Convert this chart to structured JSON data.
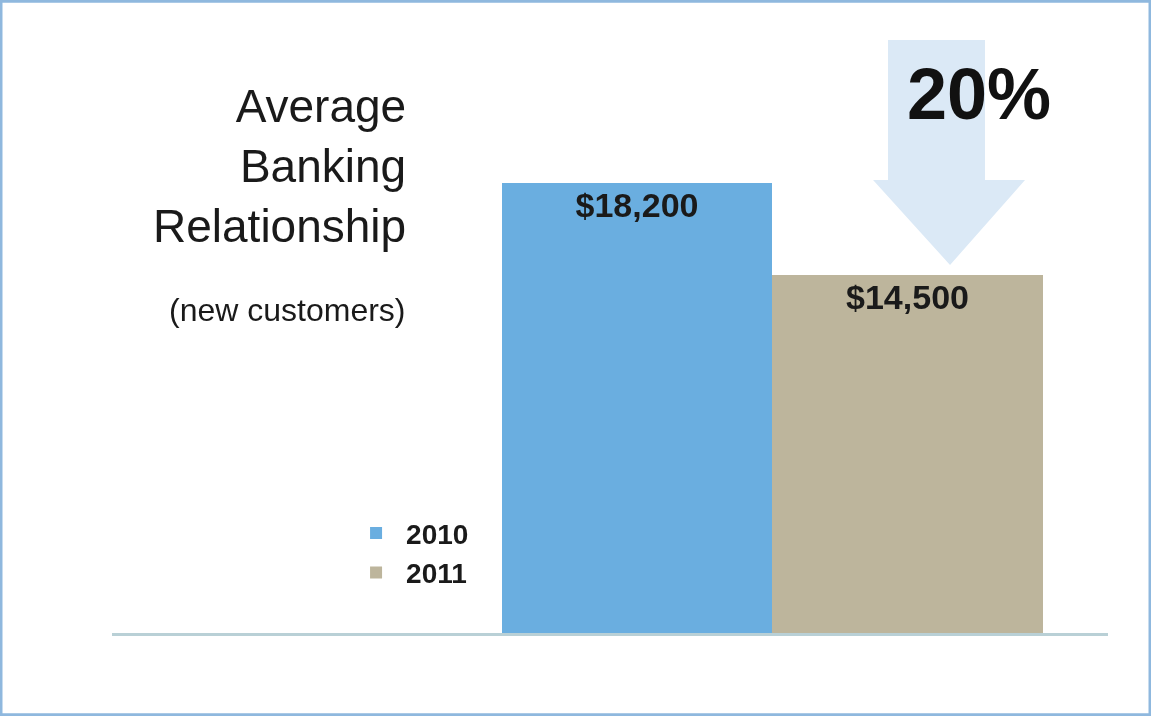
{
  "chart_data": {
    "type": "bar",
    "title": "Average Banking Relationship",
    "subtitle": "(new customers)",
    "categories": [
      null
    ],
    "series": [
      {
        "name": "2010",
        "color": "#6aaee0",
        "values": [
          18200
        ],
        "value_labels": [
          "$18,200"
        ]
      },
      {
        "name": "2011",
        "color": "#bdb59c",
        "values": [
          14500
        ],
        "value_labels": [
          "$14,500"
        ]
      }
    ],
    "annotations": [
      "20%"
    ],
    "legend": "bottom left"
  }
}
